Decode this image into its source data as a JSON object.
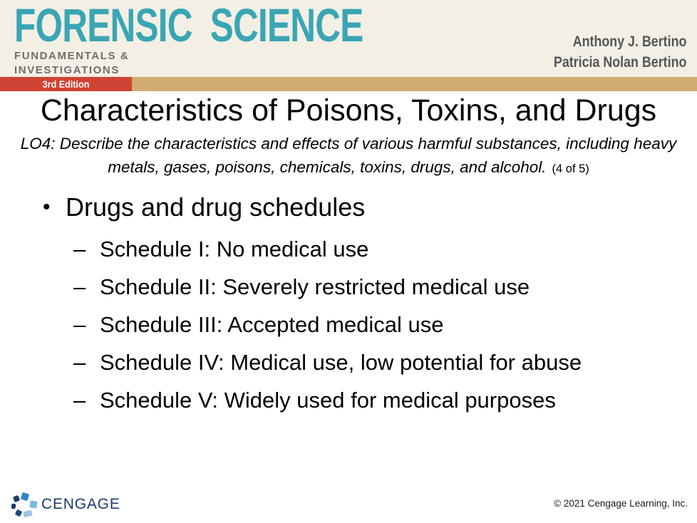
{
  "header": {
    "brand_title": "FORENSIC SCIENCE",
    "brand_sub1": "FUNDAMENTALS &",
    "brand_sub2": "INVESTIGATIONS",
    "edition": "3rd Edition",
    "authors": [
      "Anthony J. Bertino",
      "Patricia Nolan Bertino"
    ]
  },
  "slide": {
    "title": "Characteristics of Poisons, Toxins, and Drugs",
    "objective_line1": "LO4: Describe the characteristics and effects of various harmful substances, including heavy",
    "objective_line2": "metals, gases, poisons, chemicals, toxins, drugs, and alcohol.",
    "objective_page": "(4 of 5)"
  },
  "content": {
    "bullet_marker": "•",
    "sub_marker": "–",
    "bullet": "Drugs and drug schedules",
    "sub_bullets": [
      "Schedule I: No medical use",
      "Schedule II: Severely restricted medical use",
      "Schedule III: Accepted medical use",
      "Schedule IV: Medical use, low potential for abuse",
      "Schedule V: Widely used for medical purposes"
    ]
  },
  "footer": {
    "wordmark": "CENGAGE",
    "copyright": "© 2021 Cengage Learning, Inc."
  },
  "colors": {
    "header_cream": "#f3efe4",
    "brand_teal": "#3aa5b4",
    "brand_gray": "#6d6e71",
    "edition_red": "#cf4332",
    "band_tan": "#cfab6f",
    "author_gray": "#55565a",
    "cengage_navy": "#1e3a6d"
  }
}
